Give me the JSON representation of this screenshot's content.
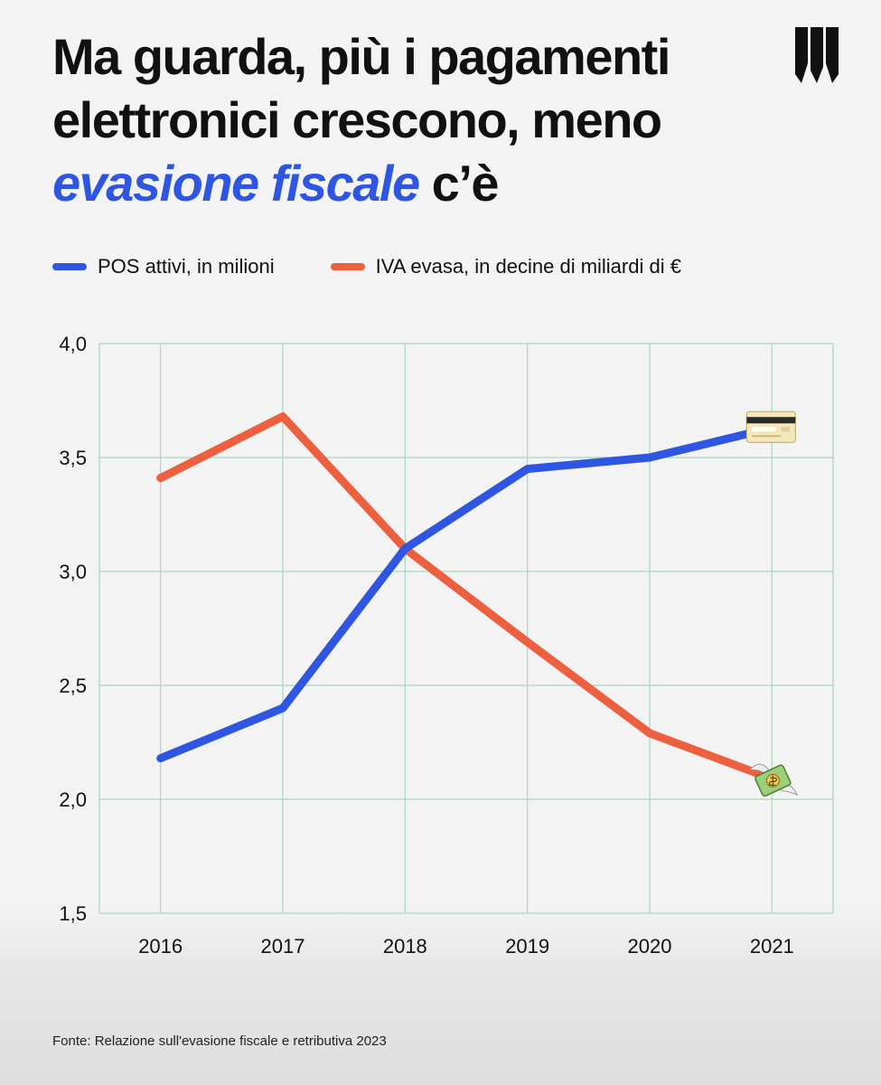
{
  "title": {
    "line1": "Ma guarda, più i pagamenti",
    "line2": "elettronici crescono, meno",
    "highlight": "evasione fiscale",
    "tail": " c’è"
  },
  "colors": {
    "blue": "#2f56e0",
    "orange": "#ec5f3f",
    "grid": "#a6d8bf",
    "highlight": "#2f56e0"
  },
  "legend": [
    {
      "label": "POS attivi, in milioni",
      "color": "#2f56e0"
    },
    {
      "label": "IVA evasa, in decine di miliardi di €",
      "color": "#ec5f3f"
    }
  ],
  "chart_data": {
    "type": "line",
    "x": [
      "2016",
      "2017",
      "2018",
      "2019",
      "2020",
      "2021"
    ],
    "series": [
      {
        "name": "POS attivi, in milioni",
        "color": "#2f56e0",
        "values": [
          2.18,
          2.4,
          3.1,
          3.45,
          3.5,
          3.63
        ],
        "end_icon": "credit-card-icon"
      },
      {
        "name": "IVA evasa, in decine di miliardi di €",
        "color": "#ec5f3f",
        "values": [
          3.41,
          3.68,
          3.1,
          2.69,
          2.29,
          2.09
        ],
        "end_icon": "money-with-wings-icon"
      }
    ],
    "ylim": [
      1.5,
      4.0
    ],
    "yticks": [
      "1,5",
      "2,0",
      "2,5",
      "3,0",
      "3,5",
      "4,0"
    ],
    "grid": true,
    "legend_position": "top-left"
  },
  "footer": {
    "source": "Fonte: Relazione sull'evasione fiscale e retributiva 2023"
  }
}
